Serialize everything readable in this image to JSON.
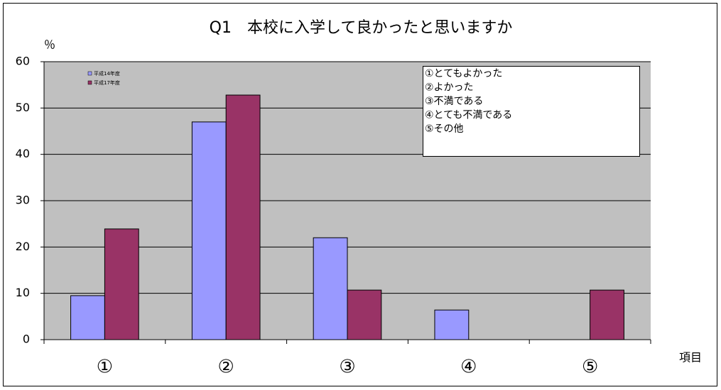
{
  "chart_data": {
    "type": "bar",
    "title": "Q1　本校に入学して良かったと思いますか",
    "y_label": "％",
    "x_label": "項目",
    "categories": [
      "①",
      "②",
      "③",
      "④",
      "⑤"
    ],
    "series": [
      {
        "name": "平成14年度",
        "color": "#9999ff",
        "values": [
          9.5,
          47.0,
          22.0,
          6.4,
          0
        ]
      },
      {
        "name": "平成17年度",
        "color": "#993366",
        "values": [
          23.9,
          52.8,
          10.7,
          0,
          10.7
        ]
      }
    ],
    "ylim": [
      0,
      60
    ],
    "yticks": [
      0,
      10,
      20,
      30,
      40,
      50,
      60
    ],
    "grid": true,
    "legend": "top-left",
    "annotations": [
      "①とてもよかった",
      "②よかった",
      "③不満である",
      "④とても不満である",
      "⑤その他"
    ]
  }
}
